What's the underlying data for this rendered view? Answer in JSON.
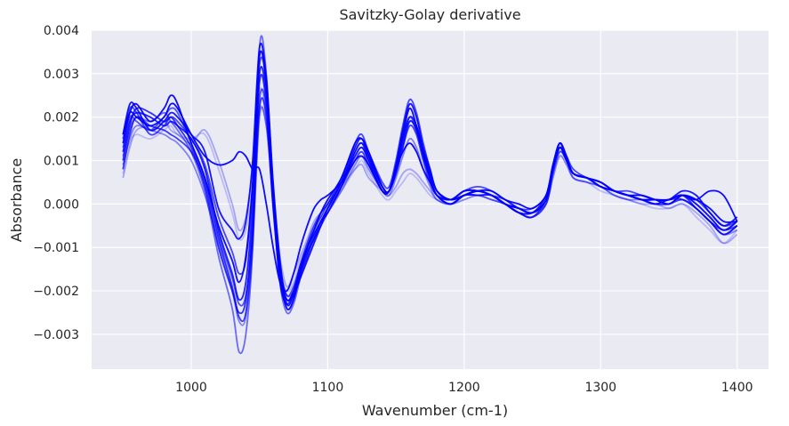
{
  "chart_data": {
    "type": "line",
    "title": "Savitzky-Golay derivative",
    "xlabel": "Wavenumber (cm-1)",
    "ylabel": "Absorbance",
    "xlim": [
      927,
      1423
    ],
    "ylim": [
      -0.0038,
      0.004
    ],
    "x_ticks": [
      1000,
      1100,
      1200,
      1300,
      1400
    ],
    "x_tick_labels": [
      "1000",
      "1100",
      "1200",
      "1300",
      "1400"
    ],
    "y_ticks": [
      -0.003,
      -0.002,
      -0.001,
      0.0,
      0.001,
      0.002,
      0.003,
      0.004
    ],
    "y_tick_labels": [
      "−0.003",
      "−0.002",
      "−0.001",
      "0.000",
      "0.001",
      "0.002",
      "0.003",
      "0.004"
    ],
    "grid": true,
    "background_color": "#eaeaf2",
    "grid_color": "#ffffff",
    "line_color": "#0000ff",
    "x": [
      950,
      955,
      960,
      970,
      980,
      985,
      990,
      1000,
      1010,
      1020,
      1030,
      1035,
      1040,
      1045,
      1050,
      1055,
      1060,
      1065,
      1070,
      1075,
      1080,
      1085,
      1090,
      1095,
      1100,
      1110,
      1120,
      1125,
      1130,
      1140,
      1145,
      1150,
      1155,
      1160,
      1165,
      1170,
      1175,
      1180,
      1190,
      1200,
      1210,
      1220,
      1230,
      1240,
      1250,
      1260,
      1265,
      1270,
      1275,
      1280,
      1290,
      1300,
      1310,
      1320,
      1330,
      1340,
      1350,
      1360,
      1370,
      1380,
      1390,
      1400
    ],
    "series": [
      {
        "opacity": 0.95,
        "values": [
          0.0014,
          0.0021,
          0.0023,
          0.0019,
          0.0022,
          0.0025,
          0.0023,
          0.0014,
          0.0006,
          -0.0005,
          -0.0013,
          -0.0018,
          -0.0012,
          0.0005,
          0.0034,
          0.0027,
          0.0002,
          -0.0015,
          -0.0022,
          -0.002,
          -0.0015,
          -0.001,
          -0.0006,
          -0.0002,
          0.0001,
          0.0006,
          0.0014,
          0.0015,
          0.0012,
          0.0004,
          0.0003,
          0.0009,
          0.0016,
          0.0022,
          0.0018,
          0.0012,
          0.0007,
          0.0003,
          0.0001,
          0.0002,
          0.0003,
          0.0003,
          0.0001,
          0.0,
          -0.0001,
          0.0002,
          0.0008,
          0.0013,
          0.001,
          0.0007,
          0.0006,
          0.0005,
          0.0003,
          0.0002,
          0.0002,
          0.0001,
          0.0,
          0.0002,
          0.0001,
          -0.0001,
          -0.0004,
          -0.0004
        ]
      },
      {
        "opacity": 0.9,
        "values": [
          0.0016,
          0.0023,
          0.0022,
          0.0017,
          0.0019,
          0.0021,
          0.002,
          0.0016,
          0.0012,
          -0.0001,
          -0.0006,
          -0.0008,
          -0.0004,
          0.001,
          0.0036,
          0.0029,
          0.0005,
          -0.0013,
          -0.0023,
          -0.0021,
          -0.0017,
          -0.0013,
          -0.0009,
          -0.0005,
          -0.0001,
          0.0005,
          0.0013,
          0.0015,
          0.0011,
          0.0004,
          0.0003,
          0.0009,
          0.0017,
          0.0023,
          0.002,
          0.0013,
          0.0008,
          0.0003,
          0.0001,
          0.0003,
          0.0003,
          0.0002,
          0.0,
          -0.0001,
          -0.0002,
          0.0002,
          0.0009,
          0.0014,
          0.0011,
          0.0007,
          0.0006,
          0.0005,
          0.0003,
          0.0002,
          0.0001,
          0.0001,
          0.0001,
          0.0003,
          0.0002,
          -0.0002,
          -0.0005,
          -0.0003
        ]
      },
      {
        "opacity": 0.85,
        "values": [
          0.0012,
          0.0019,
          0.0021,
          0.002,
          0.0018,
          0.0019,
          0.0018,
          0.0015,
          0.0008,
          -0.0006,
          -0.0016,
          -0.0022,
          -0.0018,
          0.0,
          0.003,
          0.0025,
          0.0003,
          -0.0016,
          -0.0024,
          -0.0022,
          -0.0016,
          -0.0011,
          -0.0008,
          -0.0004,
          -0.0002,
          0.0004,
          0.0012,
          0.0014,
          0.0011,
          0.0004,
          0.0003,
          0.0008,
          0.0015,
          0.002,
          0.0018,
          0.0012,
          0.0006,
          0.0002,
          0.0,
          0.0002,
          0.0002,
          0.0002,
          0.0,
          -0.0002,
          -0.0002,
          0.0001,
          0.0008,
          0.0013,
          0.001,
          0.0007,
          0.0006,
          0.0004,
          0.0003,
          0.0002,
          0.0002,
          0.0001,
          0.0001,
          0.0002,
          0.0,
          -0.0003,
          -0.0006,
          -0.0004
        ]
      },
      {
        "opacity": 0.8,
        "values": [
          0.001,
          0.0018,
          0.0022,
          0.0021,
          0.0019,
          0.002,
          0.0018,
          0.0013,
          0.0004,
          -0.001,
          -0.002,
          -0.0025,
          -0.0022,
          -0.0004,
          0.0028,
          0.0023,
          0.0,
          -0.0018,
          -0.0023,
          -0.002,
          -0.0014,
          -0.001,
          -0.0007,
          -0.0004,
          -0.0001,
          0.0005,
          0.0011,
          0.0013,
          0.001,
          0.0003,
          0.0003,
          0.0008,
          0.0014,
          0.0019,
          0.0017,
          0.0011,
          0.0006,
          0.0002,
          0.0001,
          0.0003,
          0.0003,
          0.0002,
          0.0,
          -0.0002,
          -0.0003,
          0.0001,
          0.0008,
          0.0014,
          0.001,
          0.0007,
          0.0006,
          0.0005,
          0.0003,
          0.0002,
          0.0001,
          0.0001,
          0.0001,
          0.0002,
          -0.0001,
          -0.0004,
          -0.0007,
          -0.0005
        ]
      },
      {
        "opacity": 0.75,
        "values": [
          0.0008,
          0.0016,
          0.002,
          0.0018,
          0.0017,
          0.0016,
          0.0015,
          0.0012,
          0.0005,
          -0.0008,
          -0.0019,
          -0.0026,
          -0.0025,
          -0.0008,
          0.0022,
          0.002,
          -0.0001,
          -0.0017,
          -0.0022,
          -0.0021,
          -0.0016,
          -0.0012,
          -0.0008,
          -0.0005,
          -0.0002,
          0.0004,
          0.001,
          0.0012,
          0.0009,
          0.0003,
          0.0003,
          0.0007,
          0.0013,
          0.0018,
          0.0016,
          0.001,
          0.0005,
          0.0002,
          0.0001,
          0.0002,
          0.0003,
          0.0002,
          0.0001,
          -0.0001,
          -0.0002,
          0.0001,
          0.0008,
          0.0013,
          0.001,
          0.0007,
          0.0006,
          0.0004,
          0.0003,
          0.0002,
          0.0001,
          0.0,
          0.0001,
          0.0001,
          -0.0001,
          -0.0004,
          -0.0006,
          -0.0005
        ]
      },
      {
        "opacity": 0.7,
        "values": [
          0.0015,
          0.0022,
          0.0021,
          0.0016,
          0.0018,
          0.002,
          0.0019,
          0.0015,
          0.0009,
          -0.0003,
          -0.0011,
          -0.0016,
          -0.0013,
          0.0004,
          0.0032,
          0.0028,
          0.0004,
          -0.0014,
          -0.0021,
          -0.0019,
          -0.0014,
          -0.0009,
          -0.0005,
          -0.0002,
          0.0,
          0.0006,
          0.0014,
          0.0016,
          0.0012,
          0.0005,
          0.0004,
          0.001,
          0.0018,
          0.0024,
          0.0021,
          0.0014,
          0.0008,
          0.0003,
          0.0001,
          0.0003,
          0.0004,
          0.0003,
          0.0001,
          -0.0001,
          -0.0001,
          0.0002,
          0.0009,
          0.0014,
          0.0011,
          0.0008,
          0.0006,
          0.0005,
          0.0003,
          0.0003,
          0.0002,
          0.0001,
          0.0001,
          0.0002,
          0.0001,
          -0.0002,
          -0.0005,
          -0.0004
        ]
      },
      {
        "opacity": 0.65,
        "values": [
          0.0013,
          0.002,
          0.0019,
          0.0017,
          0.002,
          0.0022,
          0.0021,
          0.0014,
          0.0006,
          -0.0007,
          -0.0017,
          -0.0023,
          -0.0021,
          -0.0006,
          0.0024,
          0.0022,
          0.0001,
          -0.0016,
          -0.0024,
          -0.0022,
          -0.0015,
          -0.001,
          -0.0006,
          -0.0003,
          0.0,
          0.0005,
          0.0012,
          0.0014,
          0.001,
          0.0004,
          0.0003,
          0.0008,
          0.0015,
          0.002,
          0.0017,
          0.0011,
          0.0006,
          0.0002,
          0.0,
          0.0002,
          0.0003,
          0.0002,
          0.0,
          -0.0002,
          -0.0002,
          0.0001,
          0.0008,
          0.0013,
          0.001,
          0.0007,
          0.0006,
          0.0004,
          0.0003,
          0.0002,
          0.0001,
          0.0,
          0.0001,
          0.0002,
          0.0,
          -0.0003,
          -0.0006,
          -0.0004
        ]
      },
      {
        "opacity": 0.55,
        "values": [
          0.0011,
          0.0017,
          0.002,
          0.0019,
          0.0021,
          0.0019,
          0.0017,
          0.0012,
          0.0003,
          -0.0012,
          -0.0024,
          -0.0034,
          -0.003,
          -0.001,
          0.0036,
          0.003,
          0.0002,
          -0.0018,
          -0.0025,
          -0.0023,
          -0.0017,
          -0.0012,
          -0.0007,
          -0.0004,
          -0.0001,
          0.0004,
          0.0011,
          0.0013,
          0.001,
          0.0003,
          0.0003,
          0.0007,
          0.0013,
          0.0019,
          0.0017,
          0.0011,
          0.0006,
          0.0002,
          0.0,
          0.0002,
          0.0002,
          0.0002,
          0.0,
          -0.0002,
          -0.0003,
          0.0,
          0.0007,
          0.0012,
          0.001,
          0.0007,
          0.0006,
          0.0004,
          0.0003,
          0.0002,
          0.0001,
          0.0,
          0.0,
          0.0001,
          -0.0001,
          -0.0004,
          -0.0007,
          -0.0005
        ]
      },
      {
        "opacity": 0.45,
        "values": [
          0.0009,
          0.0015,
          0.0018,
          0.0017,
          0.0016,
          0.0015,
          0.0014,
          0.001,
          0.0002,
          -0.0009,
          -0.002,
          -0.0027,
          -0.0026,
          -0.001,
          0.002,
          0.0018,
          0.0,
          -0.0015,
          -0.0021,
          -0.002,
          -0.0015,
          -0.0011,
          -0.0007,
          -0.0004,
          -0.0002,
          0.0003,
          0.0009,
          0.0011,
          0.0008,
          0.0003,
          0.0002,
          0.0006,
          0.0011,
          0.0015,
          0.0013,
          0.0008,
          0.0004,
          0.0001,
          0.0,
          0.0002,
          0.0002,
          0.0001,
          0.0,
          -0.0002,
          -0.0003,
          0.0,
          0.0007,
          0.0012,
          0.001,
          0.0006,
          0.0005,
          0.0004,
          0.0002,
          0.0001,
          0.0001,
          0.0,
          0.0,
          0.0001,
          -0.0001,
          -0.0004,
          -0.0007,
          -0.0006
        ]
      },
      {
        "opacity": 0.3,
        "values": [
          0.0006,
          0.0013,
          0.0017,
          0.0018,
          0.0019,
          0.0017,
          0.0016,
          0.0014,
          0.0017,
          0.001,
          0.0,
          -0.0006,
          -0.0003,
          0.0008,
          0.0022,
          0.0018,
          0.0003,
          -0.0012,
          -0.0019,
          -0.0016,
          -0.0012,
          -0.0008,
          -0.0004,
          -0.0002,
          0.0,
          0.0004,
          0.0008,
          0.0009,
          0.0006,
          0.0003,
          0.0002,
          0.0004,
          0.0007,
          0.0008,
          0.0007,
          0.0005,
          0.0003,
          0.0001,
          0.0,
          0.0001,
          0.0002,
          0.0001,
          0.0,
          -0.0001,
          -0.0002,
          0.0,
          0.0006,
          0.0011,
          0.0009,
          0.0006,
          0.0005,
          0.0004,
          0.0002,
          0.0001,
          0.0,
          0.0,
          -0.0001,
          0.0,
          -0.0002,
          -0.0005,
          -0.0009,
          -0.0007
        ]
      },
      {
        "opacity": 0.2,
        "values": [
          0.0007,
          0.0014,
          0.0016,
          0.0015,
          0.0017,
          0.0018,
          0.0016,
          0.0015,
          0.0016,
          0.0008,
          -0.0002,
          -0.0008,
          -0.0006,
          0.0005,
          0.0026,
          0.002,
          0.0002,
          -0.0014,
          -0.002,
          -0.0018,
          -0.0013,
          -0.0009,
          -0.0005,
          -0.0003,
          -0.0001,
          0.0003,
          0.0008,
          0.001,
          0.0007,
          0.0002,
          0.0001,
          0.0003,
          0.0005,
          0.0007,
          0.0006,
          0.0004,
          0.0002,
          0.0001,
          0.0,
          0.0001,
          0.0002,
          0.0001,
          0.0,
          -0.0001,
          -0.0002,
          0.0,
          0.0006,
          0.0011,
          0.0009,
          0.0006,
          0.0005,
          0.0003,
          0.0002,
          0.0001,
          0.0,
          -0.0001,
          -0.0001,
          0.0,
          -0.0003,
          -0.0006,
          -0.0009,
          -0.0006
        ]
      },
      {
        "opacity": 0.95,
        "values": [
          0.0016,
          0.0021,
          0.002,
          0.0018,
          0.002,
          0.0023,
          0.0022,
          0.0016,
          0.0011,
          0.0009,
          0.001,
          0.0012,
          0.0011,
          0.0008,
          0.0008,
          0.0,
          -0.001,
          -0.0018,
          -0.002,
          -0.0016,
          -0.001,
          -0.0005,
          -0.0001,
          0.0001,
          0.0002,
          0.0005,
          0.001,
          0.0011,
          0.0009,
          0.0003,
          0.0003,
          0.0008,
          0.0012,
          0.0014,
          0.0012,
          0.0008,
          0.0005,
          0.0002,
          0.0,
          0.0002,
          0.0003,
          0.0002,
          0.0,
          -0.0001,
          -0.0002,
          0.0001,
          0.0008,
          0.0013,
          0.001,
          0.0007,
          0.0006,
          0.0004,
          0.0003,
          0.0002,
          0.0001,
          0.0001,
          0.0,
          0.0002,
          0.0001,
          0.0003,
          0.0002,
          -0.0004
        ]
      }
    ]
  }
}
